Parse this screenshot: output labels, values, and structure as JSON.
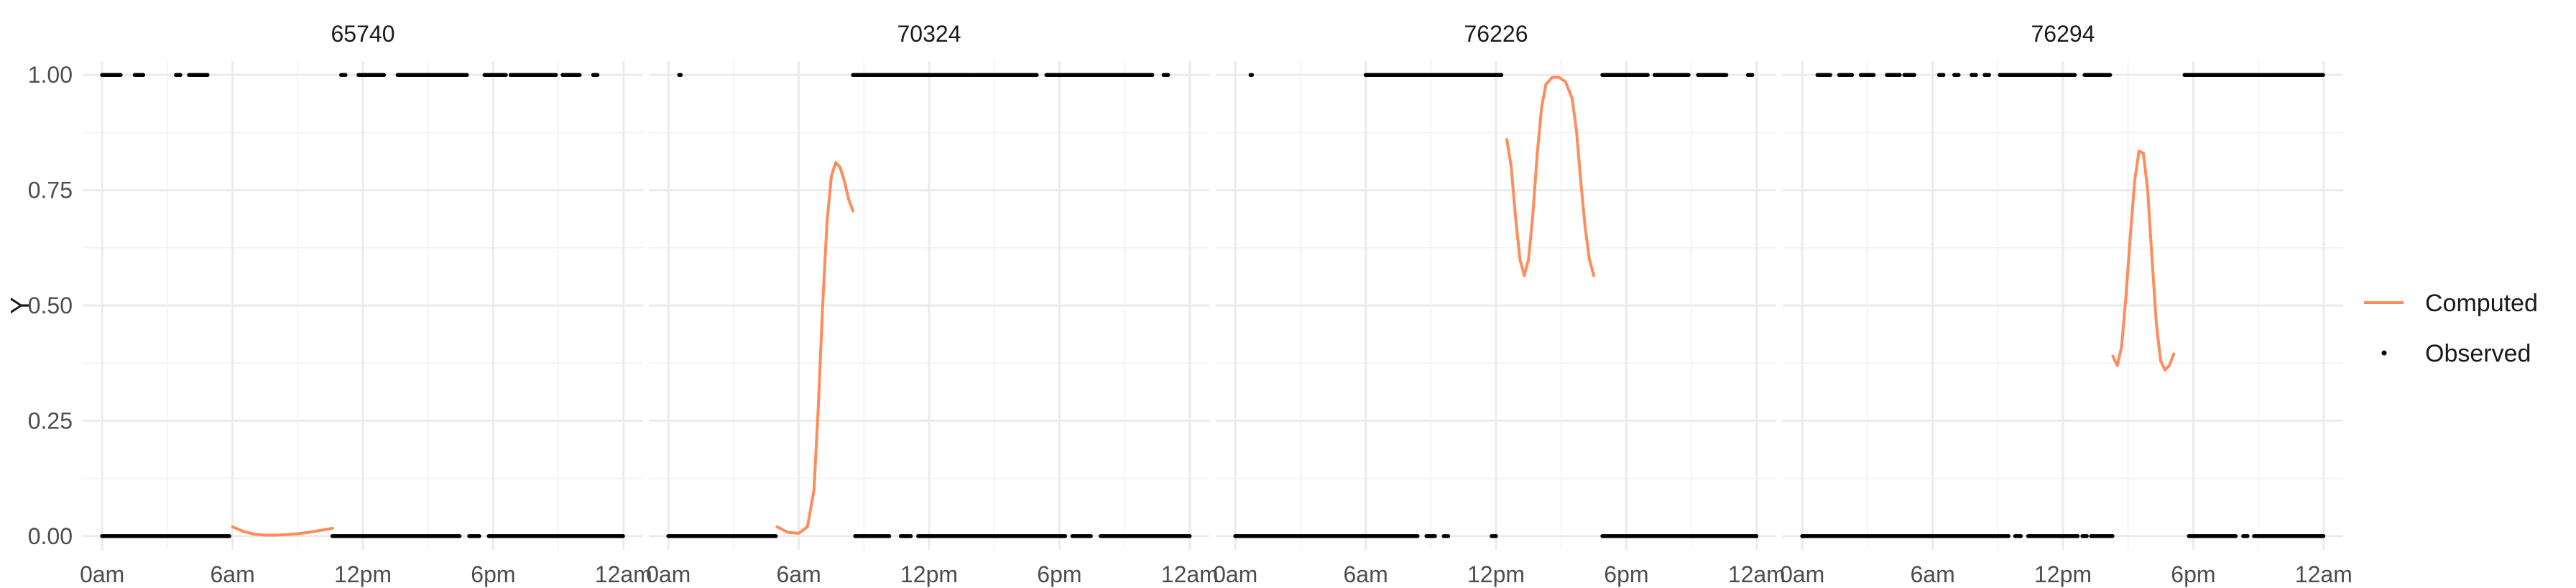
{
  "chart_data": {
    "type": "scatter",
    "ylabel": "Y",
    "ylim": [
      -0.03,
      1.03
    ],
    "y_ticks": [
      0,
      0.25,
      0.5,
      0.75,
      1
    ],
    "y_tick_labels": [
      "0.00",
      "0.25",
      "0.50",
      "0.75",
      "1.00"
    ],
    "xlim": [
      -0.9,
      24.9
    ],
    "x_ticks": [
      0,
      6,
      12,
      18,
      24
    ],
    "x_tick_labels": [
      "0am",
      "6am",
      "12pm",
      "6pm",
      "12am"
    ],
    "legend": {
      "position": "right",
      "entries": [
        {
          "label": "Computed",
          "color": "#FF8C5A",
          "kind": "line"
        },
        {
          "label": "Observed",
          "color": "#000000",
          "kind": "point"
        }
      ]
    },
    "grid": true,
    "panels": [
      {
        "title": "65740",
        "observed_runs": [
          {
            "y": 1,
            "from": 0.0,
            "to": 0.9
          },
          {
            "y": 1,
            "from": 1.5,
            "to": 1.9
          },
          {
            "y": 1,
            "from": 3.4,
            "to": 3.6
          },
          {
            "y": 1,
            "from": 4.0,
            "to": 4.9
          },
          {
            "y": 1,
            "from": 11.0,
            "to": 11.2
          },
          {
            "y": 1,
            "from": 11.8,
            "to": 13.0
          },
          {
            "y": 1,
            "from": 13.6,
            "to": 16.8
          },
          {
            "y": 1,
            "from": 17.6,
            "to": 18.6
          },
          {
            "y": 1,
            "from": 18.8,
            "to": 20.9
          },
          {
            "y": 1,
            "from": 21.2,
            "to": 22.0
          },
          {
            "y": 1,
            "from": 22.6,
            "to": 22.8
          },
          {
            "y": 0,
            "from": 0.0,
            "to": 5.9
          },
          {
            "y": 0,
            "from": 10.6,
            "to": 16.5
          },
          {
            "y": 0,
            "from": 16.9,
            "to": 17.4
          },
          {
            "y": 0,
            "from": 17.8,
            "to": 24.0
          }
        ],
        "computed": [
          [
            6.0,
            0.02
          ],
          [
            6.5,
            0.01
          ],
          [
            7.0,
            0.004
          ],
          [
            7.5,
            0.002
          ],
          [
            8.0,
            0.002
          ],
          [
            8.5,
            0.003
          ],
          [
            9.0,
            0.005
          ],
          [
            9.5,
            0.008
          ],
          [
            10.0,
            0.012
          ],
          [
            10.5,
            0.016
          ],
          [
            10.6,
            0.017
          ]
        ]
      },
      {
        "title": "70324",
        "observed_runs": [
          {
            "y": 1,
            "from": 0.5,
            "to": 0.6
          },
          {
            "y": 1,
            "from": 8.5,
            "to": 17.0
          },
          {
            "y": 1,
            "from": 17.4,
            "to": 22.3
          },
          {
            "y": 1,
            "from": 22.8,
            "to": 23.0
          },
          {
            "y": 0,
            "from": 0.0,
            "to": 5.0
          },
          {
            "y": 0,
            "from": 8.6,
            "to": 10.2
          },
          {
            "y": 0,
            "from": 10.7,
            "to": 11.2
          },
          {
            "y": 0,
            "from": 11.5,
            "to": 18.3
          },
          {
            "y": 0,
            "from": 18.6,
            "to": 19.5
          },
          {
            "y": 0,
            "from": 19.9,
            "to": 24.0
          }
        ],
        "computed": [
          [
            5.0,
            0.02
          ],
          [
            5.5,
            0.008
          ],
          [
            6.0,
            0.006
          ],
          [
            6.4,
            0.02
          ],
          [
            6.7,
            0.1
          ],
          [
            6.9,
            0.28
          ],
          [
            7.1,
            0.5
          ],
          [
            7.3,
            0.68
          ],
          [
            7.5,
            0.78
          ],
          [
            7.7,
            0.81
          ],
          [
            7.9,
            0.8
          ],
          [
            8.1,
            0.77
          ],
          [
            8.3,
            0.73
          ],
          [
            8.5,
            0.705
          ]
        ]
      },
      {
        "title": "76226",
        "observed_runs": [
          {
            "y": 1,
            "from": 0.7,
            "to": 0.8
          },
          {
            "y": 1,
            "from": 6.0,
            "to": 12.3
          },
          {
            "y": 1,
            "from": 16.9,
            "to": 19.0
          },
          {
            "y": 1,
            "from": 19.3,
            "to": 20.9
          },
          {
            "y": 1,
            "from": 21.3,
            "to": 22.6
          },
          {
            "y": 1,
            "from": 23.6,
            "to": 23.8
          },
          {
            "y": 0,
            "from": 0.0,
            "to": 8.4
          },
          {
            "y": 0,
            "from": 8.8,
            "to": 9.2
          },
          {
            "y": 0,
            "from": 9.6,
            "to": 9.8
          },
          {
            "y": 0,
            "from": 11.8,
            "to": 12.0
          },
          {
            "y": 0,
            "from": 16.9,
            "to": 24.0
          }
        ],
        "computed": [
          [
            12.5,
            0.86
          ],
          [
            12.7,
            0.8
          ],
          [
            12.9,
            0.69
          ],
          [
            13.1,
            0.6
          ],
          [
            13.3,
            0.565
          ],
          [
            13.5,
            0.6
          ],
          [
            13.7,
            0.7
          ],
          [
            13.9,
            0.83
          ],
          [
            14.1,
            0.93
          ],
          [
            14.3,
            0.98
          ],
          [
            14.6,
            0.995
          ],
          [
            14.9,
            0.995
          ],
          [
            15.2,
            0.985
          ],
          [
            15.5,
            0.95
          ],
          [
            15.7,
            0.88
          ],
          [
            15.9,
            0.77
          ],
          [
            16.1,
            0.67
          ],
          [
            16.3,
            0.6
          ],
          [
            16.5,
            0.565
          ]
        ]
      },
      {
        "title": "76294",
        "observed_runs": [
          {
            "y": 1,
            "from": 0.7,
            "to": 1.3
          },
          {
            "y": 1,
            "from": 1.7,
            "to": 2.3
          },
          {
            "y": 1,
            "from": 2.7,
            "to": 3.3
          },
          {
            "y": 1,
            "from": 3.9,
            "to": 4.5
          },
          {
            "y": 1,
            "from": 4.7,
            "to": 5.2
          },
          {
            "y": 1,
            "from": 6.3,
            "to": 6.5
          },
          {
            "y": 1,
            "from": 7.0,
            "to": 7.2
          },
          {
            "y": 1,
            "from": 7.8,
            "to": 8.0
          },
          {
            "y": 1,
            "from": 8.4,
            "to": 8.6
          },
          {
            "y": 1,
            "from": 9.1,
            "to": 12.6
          },
          {
            "y": 1,
            "from": 13.0,
            "to": 14.2
          },
          {
            "y": 1,
            "from": 17.6,
            "to": 24.0
          },
          {
            "y": 0,
            "from": 0.0,
            "to": 9.5
          },
          {
            "y": 0,
            "from": 9.8,
            "to": 10.1
          },
          {
            "y": 0,
            "from": 10.4,
            "to": 12.7
          },
          {
            "y": 0,
            "from": 12.9,
            "to": 13.1
          },
          {
            "y": 0,
            "from": 13.3,
            "to": 14.3
          },
          {
            "y": 0,
            "from": 17.8,
            "to": 20.0
          },
          {
            "y": 0,
            "from": 20.3,
            "to": 20.5
          },
          {
            "y": 0,
            "from": 20.8,
            "to": 24.0
          }
        ],
        "computed": [
          [
            14.3,
            0.39
          ],
          [
            14.5,
            0.37
          ],
          [
            14.7,
            0.41
          ],
          [
            14.9,
            0.52
          ],
          [
            15.1,
            0.65
          ],
          [
            15.3,
            0.77
          ],
          [
            15.5,
            0.835
          ],
          [
            15.7,
            0.83
          ],
          [
            15.9,
            0.75
          ],
          [
            16.1,
            0.6
          ],
          [
            16.3,
            0.46
          ],
          [
            16.5,
            0.38
          ],
          [
            16.7,
            0.36
          ],
          [
            16.9,
            0.37
          ],
          [
            17.1,
            0.395
          ]
        ]
      }
    ]
  }
}
